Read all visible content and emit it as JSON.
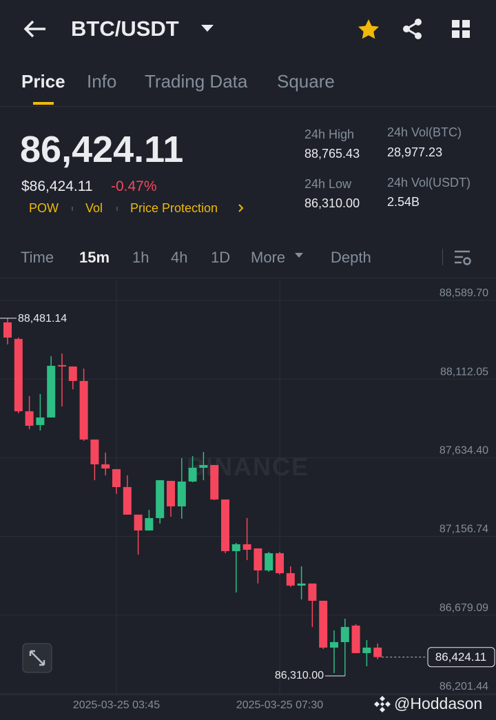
{
  "header": {
    "pair": "BTC/USDT"
  },
  "tabs": [
    "Price",
    "Info",
    "Trading Data",
    "Square"
  ],
  "price": {
    "last": "86,424.11",
    "fiat": "$86,424.11",
    "change": "-0.47%",
    "tags": [
      "POW",
      "Vol",
      "Price Protection"
    ]
  },
  "stats": [
    {
      "label": "24h High",
      "value": "88,765.43"
    },
    {
      "label": "24h Vol(BTC)",
      "value": "28,977.23"
    },
    {
      "label": "24h Low",
      "value": "86,310.00"
    },
    {
      "label": "24h Vol(USDT)",
      "value": "2.54B"
    }
  ],
  "intervals": [
    "Time",
    "15m",
    "1h",
    "4h",
    "1D",
    "More",
    "Depth"
  ],
  "footer_watermark": "@Hoddason",
  "chart_data": {
    "type": "candlestick",
    "watermark": "BINANCE",
    "categories": [
      null,
      null,
      null,
      null,
      null,
      null,
      null,
      null,
      null,
      null,
      "2025-03-25 03:45",
      null,
      null,
      null,
      null,
      null,
      null,
      null,
      null,
      null,
      null,
      null,
      null,
      null,
      null,
      "2025-03-25 07:30",
      null,
      null,
      null,
      null,
      null,
      null,
      null,
      null,
      null
    ],
    "open": [
      88455.9,
      88355.5,
      87916.3,
      87832.7,
      87878.7,
      88196.5,
      88188.2,
      88100.3,
      87744.8,
      87594.2,
      87565.0,
      87456.2,
      87288.9,
      87192.7,
      87268.0,
      87493.9,
      87339.1,
      87489.7,
      87573.3,
      87590.1,
      87380.9,
      87067.2,
      87109.1,
      87084.0,
      86950.1,
      87054.7,
      86933.4,
      86858.1,
      86870.7,
      86766.1,
      86481.7,
      86515.1,
      86615.5,
      86448.2,
      86481.7
    ],
    "high": [
      88481.14,
      88363.8,
      88008.3,
      88020.9,
      88250.9,
      88267.6,
      88188.2,
      88175.6,
      87744.8,
      87665.3,
      87565.0,
      87527.3,
      87288.9,
      87318.2,
      87498.0,
      87493.9,
      87631.9,
      87644.4,
      87669.5,
      87590.1,
      87380.9,
      87117.4,
      87268.0,
      87084.0,
      87063.1,
      87063.1,
      86975.2,
      86975.2,
      86870.7,
      86766.1,
      86586.2,
      86657.3,
      86623.9,
      86527.7,
      86506.8
    ],
    "low": [
      88322.0,
      87903.7,
      87807.6,
      87799.2,
      87878.7,
      87945.6,
      88050.1,
      87736.4,
      87498.0,
      87527.3,
      87414.4,
      87288.9,
      87046.3,
      87192.7,
      87234.5,
      87276.4,
      87263.8,
      87485.5,
      87498.0,
      87376.8,
      87054.7,
      86816.3,
      87012.9,
      86870.7,
      86941.8,
      86925.0,
      86849.7,
      86774.5,
      86607.1,
      86473.3,
      86326.9,
      86310.0,
      86448.2,
      86368.8,
      86410.6
    ],
    "close": [
      88363.8,
      87916.3,
      87828.5,
      87878.7,
      88192.4,
      88188.2,
      88100.3,
      87744.8,
      87594.2,
      87569.1,
      87456.2,
      87288.9,
      87192.7,
      87268.0,
      87498.0,
      87339.1,
      87489.7,
      87573.3,
      87590.1,
      87380.9,
      87067.2,
      87109.1,
      87075.6,
      86950.1,
      87054.7,
      86933.4,
      86858.1,
      86870.7,
      86766.1,
      86481.7,
      86515.1,
      86607.1,
      86448.2,
      86481.7,
      86424.11
    ],
    "up_color": "#2ebd85",
    "down_color": "#f6465d",
    "ylim": [
      86197,
      88719
    ],
    "yticks": [
      {
        "value": 88589.7,
        "label": "88,589.70"
      },
      {
        "value": 88112.05,
        "label": "88,112.05"
      },
      {
        "value": 87634.4,
        "label": "87,634.40"
      },
      {
        "value": 87156.74,
        "label": "87,156.74"
      },
      {
        "value": 86679.09,
        "label": "86,679.09"
      },
      {
        "value": 86201.44,
        "label": "86,201.44"
      }
    ],
    "grid": true,
    "markers": [
      {
        "value": 88481.14,
        "label": "88,481.14"
      },
      {
        "value": 86310.0,
        "label": "86,310.00"
      },
      {
        "value": 86424.11,
        "label": "86,424.11"
      }
    ]
  }
}
